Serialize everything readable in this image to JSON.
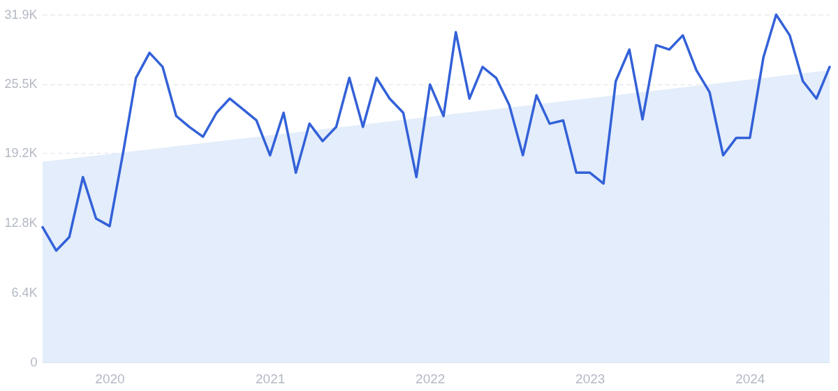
{
  "chart_data": {
    "type": "line",
    "series": [
      {
        "type": "area",
        "color": "#e3edfb",
        "x": [
          "2019-08",
          "2024-07"
        ],
        "values": [
          18.4,
          26.8
        ]
      },
      {
        "color": "#3361d8",
        "x": [
          "2019-08",
          "2019-09",
          "2019-10",
          "2019-11",
          "2019-12",
          "2020-01",
          "2020-02",
          "2020-03",
          "2020-04",
          "2020-05",
          "2020-06",
          "2020-07",
          "2020-08",
          "2020-09",
          "2020-10",
          "2020-11",
          "2020-12",
          "2021-01",
          "2021-02",
          "2021-03",
          "2021-04",
          "2021-05",
          "2021-06",
          "2021-07",
          "2021-08",
          "2021-09",
          "2021-10",
          "2021-11",
          "2021-12",
          "2022-01",
          "2022-02",
          "2022-03",
          "2022-04",
          "2022-05",
          "2022-06",
          "2022-07",
          "2022-08",
          "2022-09",
          "2022-10",
          "2022-11",
          "2022-12",
          "2023-01",
          "2023-02",
          "2023-03",
          "2023-04",
          "2023-05",
          "2023-06",
          "2023-07",
          "2023-08",
          "2023-09",
          "2023-10",
          "2023-11",
          "2023-12",
          "2024-01",
          "2024-02",
          "2024-03",
          "2024-04",
          "2024-05",
          "2024-06",
          "2024-07"
        ],
        "values": [
          12.4,
          10.25,
          11.5,
          17.0,
          13.2,
          12.5,
          19.3,
          26.1,
          28.4,
          27.1,
          22.6,
          21.6,
          20.7,
          22.9,
          24.2,
          23.2,
          22.2,
          19.0,
          22.9,
          17.4,
          21.9,
          20.3,
          21.6,
          26.1,
          21.6,
          26.1,
          24.2,
          22.9,
          17.0,
          25.5,
          22.6,
          30.3,
          24.2,
          27.1,
          26.1,
          23.6,
          19.0,
          24.5,
          21.9,
          22.2,
          17.4,
          17.4,
          16.4,
          25.8,
          28.7,
          22.3,
          29.1,
          28.7,
          30.0,
          26.8,
          24.8,
          19.0,
          20.6,
          20.6,
          28.0,
          31.9,
          30.0,
          25.8,
          24.2,
          27.1
        ]
      }
    ],
    "xlim": [
      "2019-08",
      "2024-07"
    ],
    "xticks": [
      "2020",
      "2021",
      "2022",
      "2023",
      "2024"
    ],
    "ylim": [
      0,
      31.9
    ],
    "yticks": [
      {
        "value": 0,
        "label": "0"
      },
      {
        "value": 6.4,
        "label": "6.4K"
      },
      {
        "value": 12.8,
        "label": "12.8K"
      },
      {
        "value": 19.2,
        "label": "19.2K"
      },
      {
        "value": 25.5,
        "label": "25.5K"
      },
      {
        "value": 31.9,
        "label": "31.9K"
      }
    ],
    "grid": "y",
    "line_style": "solid"
  }
}
